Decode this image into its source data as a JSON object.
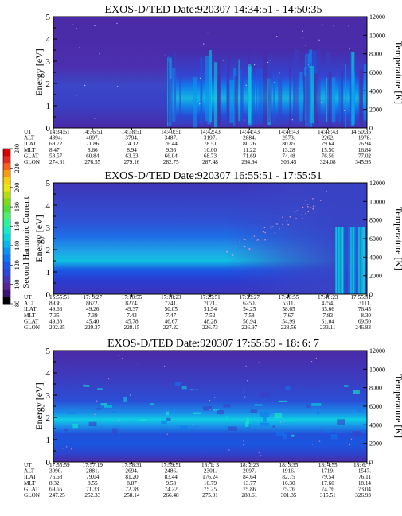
{
  "colorbar": {
    "label": "Second Harmonic Current",
    "ticks": [
      "80",
      "100",
      "120",
      "140",
      "160",
      "180",
      "200",
      "220",
      "240"
    ],
    "colors": [
      "#000000",
      "#3c1273",
      "#5a2493",
      "#4a36b2",
      "#2f47d6",
      "#1a5ae6",
      "#1076ee",
      "#0b95f0",
      "#06b6ec",
      "#07d6dc",
      "#17ecc8",
      "#2bf29b",
      "#4cf06e",
      "#4fe03a",
      "#7fd81a",
      "#b4dd10",
      "#e8e810",
      "#f7cf0e",
      "#f89b10",
      "#f4641a",
      "#e52822",
      "#d80000"
    ]
  },
  "chart_data": [
    {
      "type": "heatmap",
      "title": "EXOS-D/TED  Date:920307  14:34:51 - 14:50:35",
      "ylabel": "Energy [eV]",
      "ylabel_right": "Temperature [K]",
      "ylim": [
        0,
        5
      ],
      "ylim_right": [
        0,
        12000
      ],
      "yticks": [
        "0",
        "1",
        "2",
        "3",
        "4",
        "5"
      ],
      "yticks_right": [
        "0",
        "2000",
        "4000",
        "6000",
        "8000",
        "10000",
        "12000"
      ],
      "row_labels": [
        "UT",
        "ALT",
        "ILAT",
        "MLT",
        "GLAT",
        "GLON"
      ],
      "columns": [
        [
          "14:34:51",
          "4394.",
          "69.72",
          "8.47",
          "58.57",
          "274.61"
        ],
        [
          "14:36:51",
          "4097.",
          "71.86",
          "8.66",
          "60.84",
          "276.55"
        ],
        [
          "14:38:51",
          "3794.",
          "74.12",
          "8.94",
          "63.33",
          "279.16"
        ],
        [
          "14:40:51",
          "3487.",
          "76.44",
          "9.36",
          "66.04",
          "282.75"
        ],
        [
          "14:42:43",
          "3197.",
          "78.51",
          "10.00",
          "68.73",
          "287.48"
        ],
        [
          "14:44:43",
          "2884.",
          "80.26",
          "11.22",
          "71.69",
          "294.94"
        ],
        [
          "14:46:43",
          "2573.",
          "80.85",
          "13.28",
          "74.48",
          "306.45"
        ],
        [
          "14:48:43",
          "2262.",
          "79.64",
          "15.50",
          "76.56",
          "324.08"
        ],
        [
          "14:50:35",
          "1978.",
          "76.94",
          "16.84",
          "77.02",
          "345.95"
        ]
      ]
    },
    {
      "type": "heatmap",
      "title": "EXOS-D/TED  Date:920307  16:55:51 - 17:55:51",
      "ylabel": "Energy [eV]",
      "ylabel_right": "Temperature [K]",
      "ylim": [
        0,
        5
      ],
      "ylim_right": [
        0,
        12000
      ],
      "yticks": [
        "0",
        "1",
        "2",
        "3",
        "4",
        "5"
      ],
      "yticks_right": [
        "0",
        "2000",
        "4000",
        "6000",
        "8000",
        "10000",
        "12000"
      ],
      "row_labels": [
        "UT",
        "ALT",
        "ILAT",
        "MLT",
        "GLAT",
        "GLON"
      ],
      "columns": [
        [
          "16:55:51",
          "8938.",
          "49.63",
          "7.35",
          "49.38",
          "202.25"
        ],
        [
          "17: 3:27",
          "8672.",
          "49.26",
          "7.39",
          "45.40",
          "229.37"
        ],
        [
          "17:10:55",
          "8274.",
          "49.37",
          "7.43",
          "45.78",
          "228.15"
        ],
        [
          "17:18:23",
          "7741.",
          "50.05",
          "7.47",
          "46.67",
          "227.22"
        ],
        [
          "17:25:51",
          "7071.",
          "51.54",
          "7.52",
          "48.28",
          "226.73"
        ],
        [
          "17:33:27",
          "6250.",
          "54.25",
          "7.58",
          "50.94",
          "226.97"
        ],
        [
          "17:40:55",
          "5311.",
          "58.65",
          "7.67",
          "54.99",
          "228.56"
        ],
        [
          "17:48:23",
          "4254.",
          "65.66",
          "7.83",
          "61.04",
          "233.11"
        ],
        [
          "17:55:51",
          "3111.",
          "76.45",
          "8.30",
          "69.50",
          "246.83"
        ]
      ]
    },
    {
      "type": "heatmap",
      "title": "EXOS-D/TED  Date:920307  17:55:59 - 18: 6: 7",
      "ylabel": "Energy [eV]",
      "ylabel_right": "Temperature [K]",
      "ylim": [
        0,
        5
      ],
      "ylim_right": [
        0,
        12000
      ],
      "yticks": [
        "0",
        "1",
        "2",
        "3",
        "4",
        "5"
      ],
      "yticks_right": [
        "0",
        "2000",
        "4000",
        "6000",
        "8000",
        "10000",
        "12000"
      ],
      "row_labels": [
        "UT",
        "ALT",
        "ILAT",
        "MLT",
        "GLAT",
        "GLON"
      ],
      "columns": [
        [
          "17:55:59",
          "3090.",
          "76.68",
          "8.32",
          "69.66",
          "247.25"
        ],
        [
          "17:57:19",
          "2881.",
          "79.04",
          "8.55",
          "71.33",
          "252.33"
        ],
        [
          "17:58:31",
          "2694.",
          "81.20",
          "8.87",
          "72.78",
          "258.14"
        ],
        [
          "17:59:51",
          "2486.",
          "83.44",
          "9.53",
          "74.22",
          "266.48"
        ],
        [
          "18: 1: 3",
          "2301.",
          "176.24",
          "10.79",
          "75.25",
          "275.91"
        ],
        [
          "18: 2:23",
          "2097.",
          "84.64",
          "13.77",
          "75.86",
          "288.61"
        ],
        [
          "18: 3:35",
          "1916.",
          "82.75",
          "16.30",
          "75.76",
          "301.35"
        ],
        [
          "18: 4:55",
          "1719.",
          "79.54",
          "17.60",
          "74.76",
          "315.51"
        ],
        [
          "18: 6: 7",
          "1547.",
          "76.11",
          "18.14",
          "73.04",
          "326.93"
        ]
      ]
    }
  ]
}
